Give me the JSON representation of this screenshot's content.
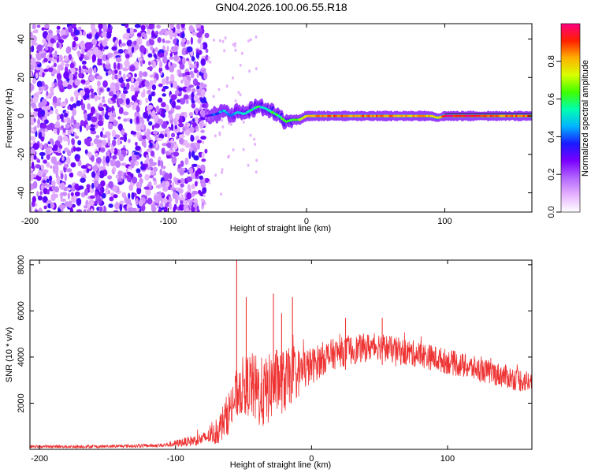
{
  "title": "GN04.2026.100.06.55.R18",
  "chart_data": [
    {
      "type": "heatmap",
      "xlabel": "Height of straight line (km)",
      "ylabel": "Frequency (Hz)",
      "xlim": [
        -200,
        163
      ],
      "ylim": [
        -50,
        48
      ],
      "x_ticks": [
        -200,
        -100,
        0,
        100
      ],
      "x_tick_labels": [
        "-200",
        "-100",
        "0",
        "100"
      ],
      "y_ticks": [
        -40,
        -20,
        0,
        20,
        40
      ],
      "y_tick_labels": [
        "-40",
        "-20",
        "0",
        "20",
        "40"
      ],
      "colorbar": {
        "label": "Normalized spectral amplitude",
        "range": [
          0,
          1
        ],
        "ticks": [
          0.0,
          0.2,
          0.4,
          0.6,
          0.8
        ],
        "tick_labels": [
          "0.0",
          "0.2",
          "0.4",
          "0.6",
          "0.8"
        ],
        "colormap": [
          "#ffffff",
          "#e6b3ff",
          "#b366ff",
          "#7a00ff",
          "#1a1aff",
          "#00b4ff",
          "#00ffb0",
          "#40ff00",
          "#d8ff00",
          "#ffb000",
          "#ff2000",
          "#ff0080"
        ]
      },
      "noise_region": {
        "x_range": [
          -200,
          -72
        ],
        "level": 0.15
      },
      "ridge": {
        "x": [
          -72,
          -65,
          -60,
          -55,
          -50,
          -45,
          -40,
          -35,
          -30,
          -25,
          -20,
          -15,
          -10,
          -5,
          0,
          10,
          20,
          40,
          60,
          80,
          90,
          95,
          100,
          120,
          140,
          163
        ],
        "frequency": [
          0,
          1,
          3,
          0,
          2,
          1,
          3,
          5,
          4,
          2,
          0,
          -3,
          -2,
          -2,
          0,
          0,
          0,
          0,
          0,
          0,
          0,
          -1,
          0,
          0,
          0,
          0
        ],
        "amplitude": [
          0.3,
          0.4,
          0.45,
          0.45,
          0.5,
          0.55,
          0.55,
          0.55,
          0.55,
          0.6,
          0.6,
          0.6,
          0.6,
          0.7,
          0.75,
          0.85,
          0.85,
          0.85,
          0.85,
          0.8,
          0.8,
          0.75,
          0.95,
          0.95,
          0.85,
          0.85
        ]
      }
    },
    {
      "type": "line",
      "xlabel": "Height of straight line (km)",
      "ylabel": "SNR (10 * v/v)",
      "xlim": [
        -207,
        162
      ],
      "ylim": [
        0,
        8200
      ],
      "x_ticks": [
        -200,
        -100,
        0,
        100
      ],
      "x_tick_labels": [
        "-200",
        "-100",
        "0",
        "100"
      ],
      "y_ticks": [
        2000,
        4000,
        6000,
        8000
      ],
      "y_tick_labels": [
        "2000",
        "4000",
        "6000",
        "8000"
      ],
      "color": "#ee3333",
      "envelope": {
        "x": [
          -207,
          -160,
          -110,
          -100,
          -90,
          -80,
          -70,
          -60,
          -55,
          -50,
          -45,
          -40,
          -35,
          -30,
          -25,
          -20,
          -15,
          -10,
          -5,
          0,
          10,
          20,
          30,
          40,
          50,
          60,
          70,
          80,
          90,
          100,
          110,
          120,
          130,
          140,
          150,
          162
        ],
        "y": [
          120,
          120,
          170,
          250,
          350,
          450,
          700,
          1700,
          2400,
          2800,
          2800,
          2500,
          2400,
          2700,
          3000,
          2900,
          3200,
          3300,
          3500,
          3600,
          4000,
          4200,
          4300,
          4400,
          4500,
          4300,
          4200,
          4100,
          3950,
          3800,
          3650,
          3500,
          3350,
          3200,
          3050,
          2900
        ]
      },
      "noise_amplitude": {
        "x": [
          -207,
          -110,
          -90,
          -75,
          -62,
          -40,
          -20,
          0,
          20,
          100,
          162
        ],
        "y": [
          60,
          80,
          220,
          320,
          900,
          1600,
          1400,
          800,
          650,
          550,
          500
        ]
      },
      "spikes": [
        {
          "x": -55,
          "y": 8200
        },
        {
          "x": -48,
          "y": 6600
        },
        {
          "x": -28,
          "y": 6750
        },
        {
          "x": -14,
          "y": 6600
        },
        {
          "x": -22,
          "y": 5900
        },
        {
          "x": 52,
          "y": 5700
        },
        {
          "x": 25,
          "y": 5700
        }
      ]
    }
  ]
}
